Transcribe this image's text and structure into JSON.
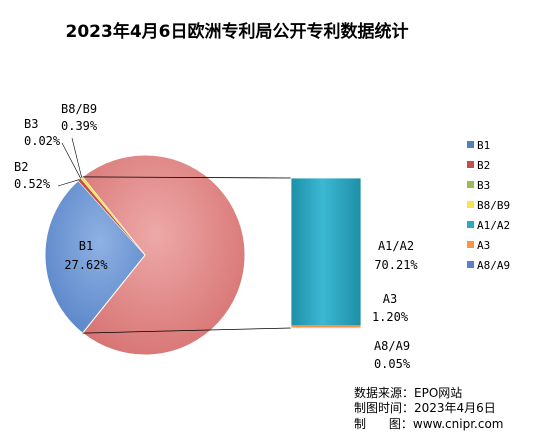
{
  "chart_data": {
    "type": "pie",
    "title": "2023年4月6日欧洲专利局公开专利数据统计",
    "slices": [
      {
        "label": "B1",
        "value": 27.62,
        "display": "27.62%",
        "color": "#4F81BD"
      },
      {
        "label": "B2",
        "value": 0.52,
        "display": "0.52%",
        "color": "#C0504D"
      },
      {
        "label": "B3",
        "value": 0.02,
        "display": "0.02%",
        "color": "#9BBB59"
      },
      {
        "label": "B8/B9",
        "value": 0.39,
        "display": "0.39%",
        "color": "#F5E64C"
      },
      {
        "label": "A1/A2",
        "value": 70.21,
        "display": "70.21%",
        "color": "#2FA8C2"
      },
      {
        "label": "A3",
        "value": 1.2,
        "display": "1.20%",
        "color": "#F79646"
      },
      {
        "label": "A8/A9",
        "value": 0.05,
        "display": "0.05%",
        "color": "#5B7FC9"
      }
    ],
    "pie_group": [
      "B1",
      "B2",
      "B3",
      "B8/B9"
    ],
    "bar_group": [
      "A1/A2",
      "A3",
      "A8/A9"
    ],
    "legend": [
      "B1",
      "B2",
      "B3",
      "B8/B9",
      "A1/A2",
      "A3",
      "A8/A9"
    ],
    "legend_position": "right"
  },
  "footer": {
    "source": "数据来源：EPO网站",
    "date": "制图时间：2023年4月6日",
    "maker": "制      图：www.cnipr.com"
  }
}
